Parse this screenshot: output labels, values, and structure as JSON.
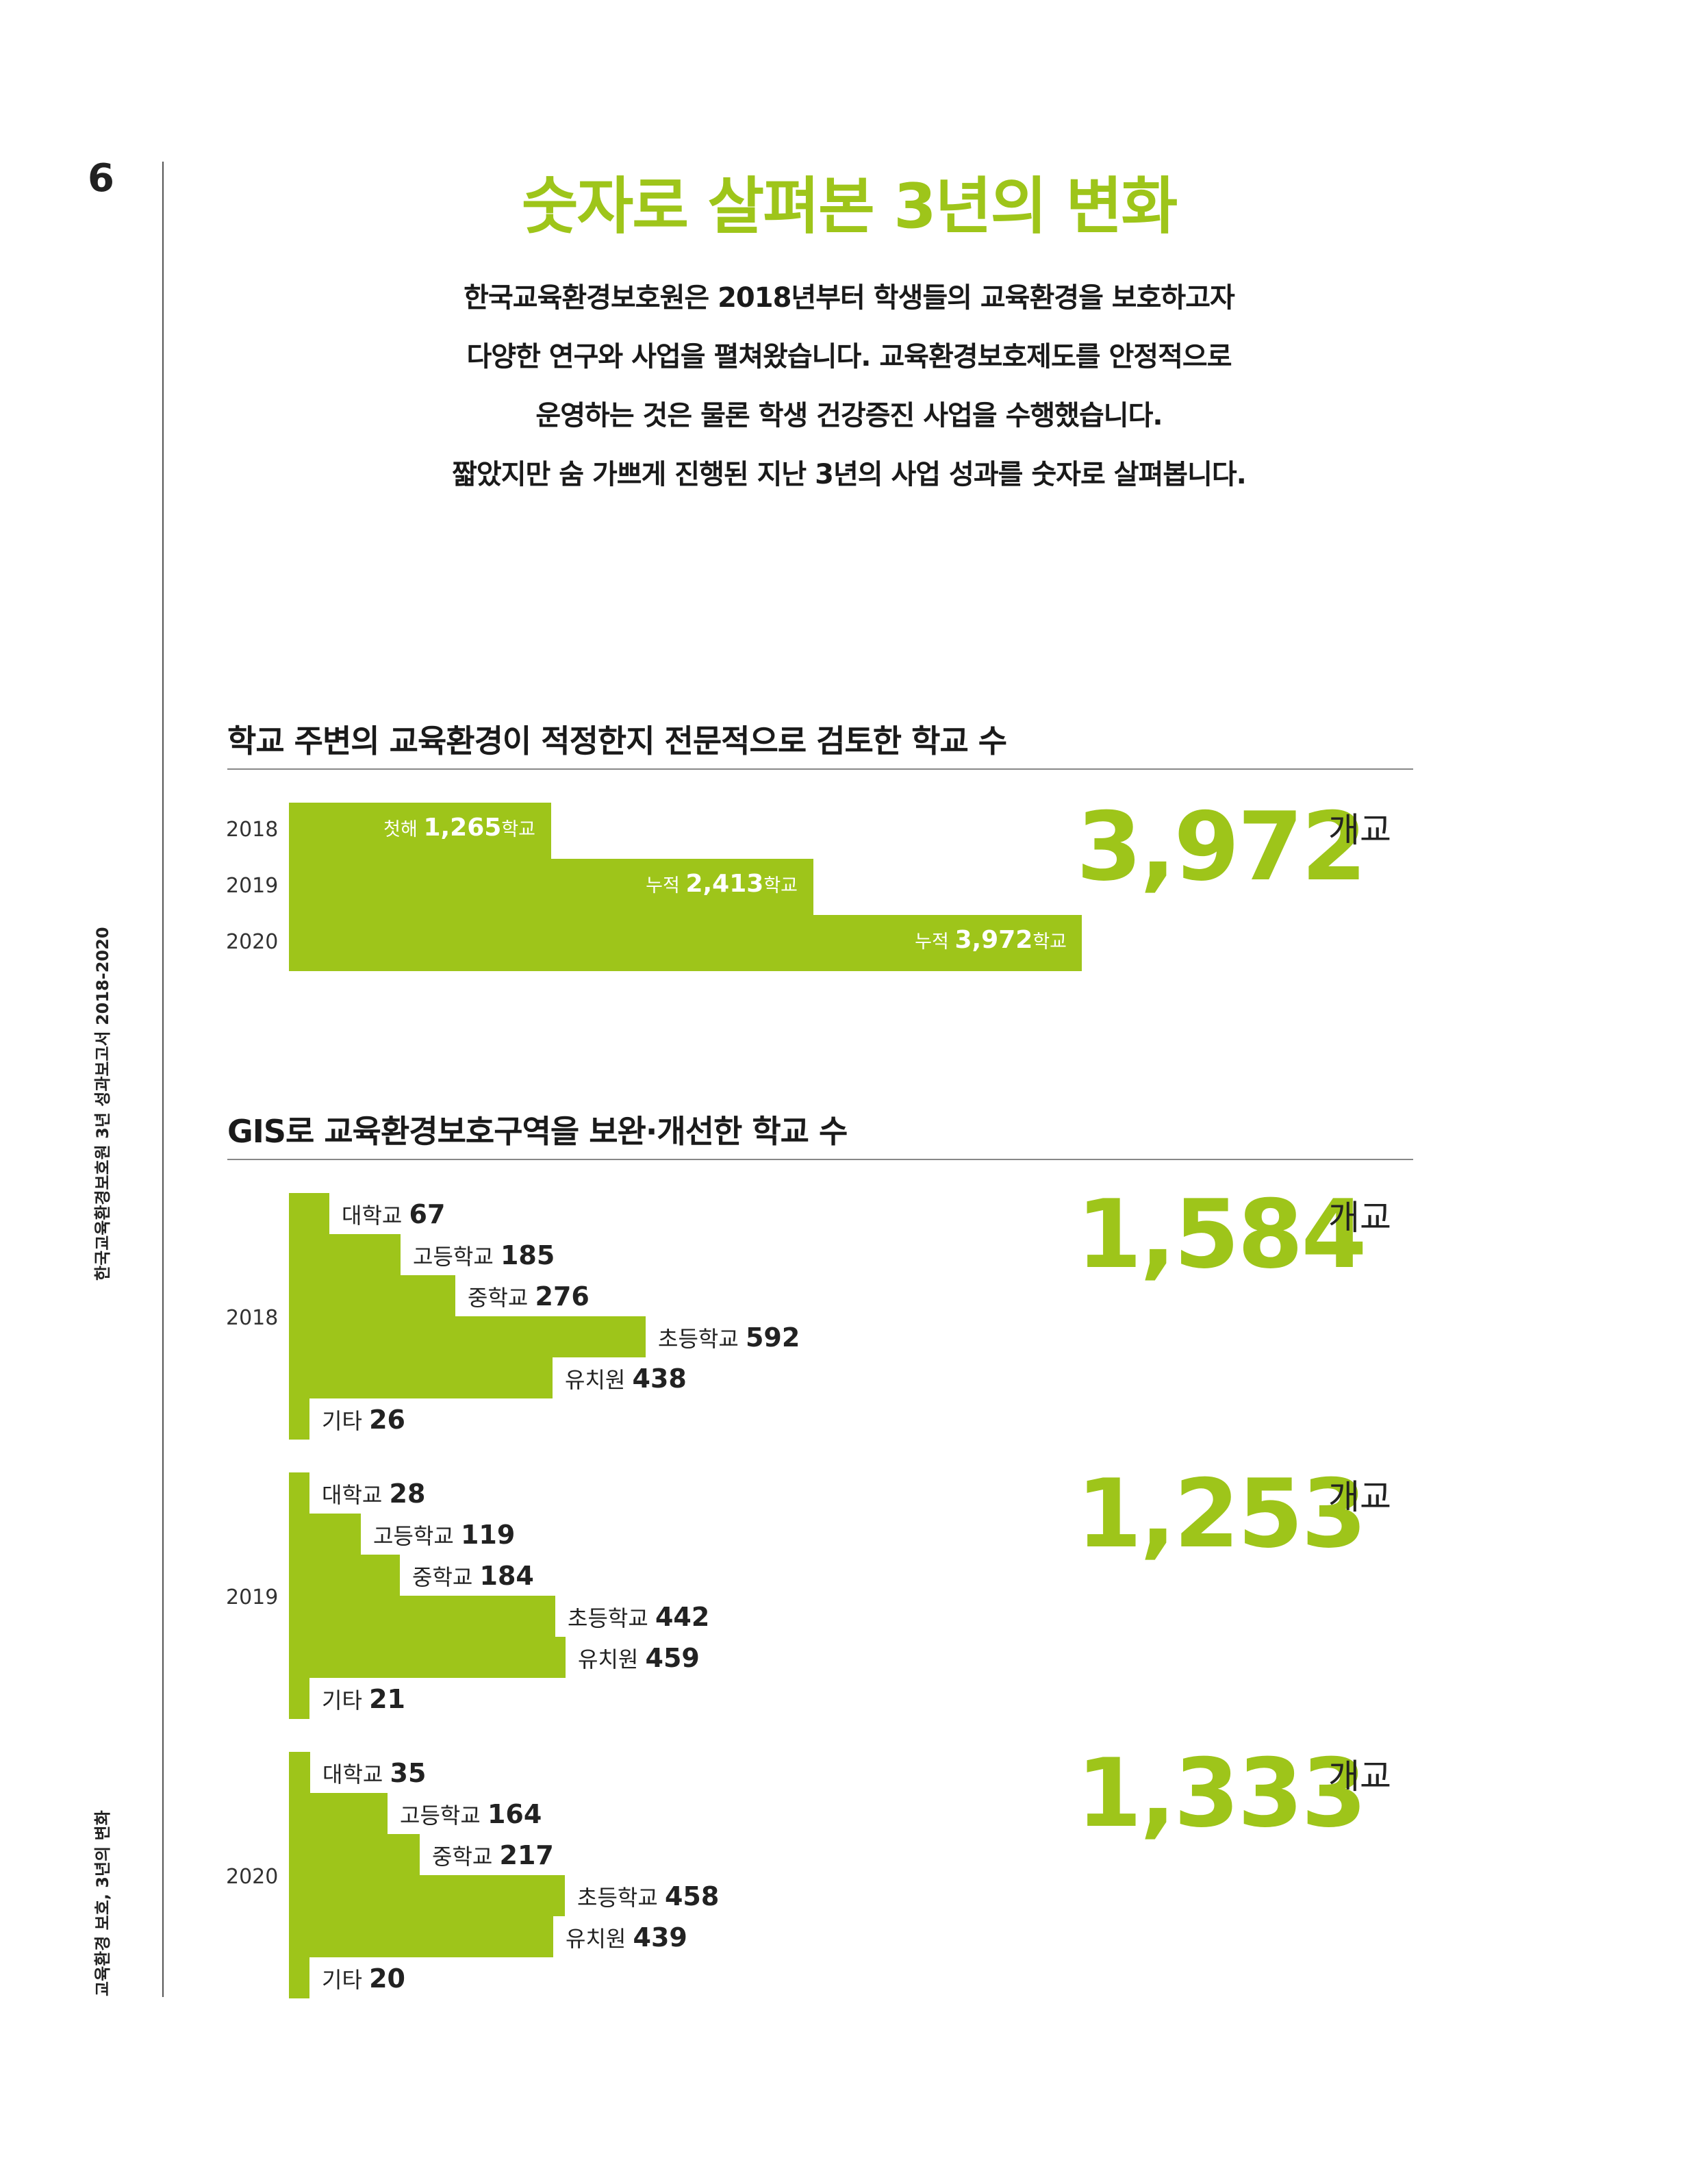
{
  "page_number": "6",
  "side": {
    "top": "한국교육환경보호원 3년 성과보고서 2018-2020",
    "bottom": "교육환경 보호, 3년의 변화"
  },
  "title": "숫자로 살펴본 3년의 변화",
  "intro_lines": [
    "한국교육환경보호원은 2018년부터 학생들의 교육환경을 보호하고자",
    "다양한 연구와 사업을 펼쳐왔습니다. 교육환경보호제도를 안정적으로",
    "운영하는 것은 물론 학생 건강증진 사업을 수행했습니다.",
    "짧았지만 숨 가쁘게 진행된 지난 3년의 사업 성과를 숫자로 살펴봅니다."
  ],
  "section1": {
    "title": "학교 주변의 교육환경이 적정한지 전문적으로 검토한 학교 수",
    "total": "3,972",
    "unit": "개교",
    "rows": [
      {
        "year": "2018",
        "prefix": "첫해",
        "value": "1,265",
        "suffix": "학교"
      },
      {
        "year": "2019",
        "prefix": "누적",
        "value": "2,413",
        "suffix": "학교"
      },
      {
        "year": "2020",
        "prefix": "누적",
        "value": "3,972",
        "suffix": "학교"
      }
    ]
  },
  "section2": {
    "title": "GIS로 교육환경보호구역을 보완·개선한 학교 수",
    "years": [
      {
        "year": "2018",
        "total": "1,584",
        "unit": "개교",
        "items": [
          {
            "label": "대학교",
            "value": "67"
          },
          {
            "label": "고등학교",
            "value": "185"
          },
          {
            "label": "중학교",
            "value": "276"
          },
          {
            "label": "초등학교",
            "value": "592"
          },
          {
            "label": "유치원",
            "value": "438"
          },
          {
            "label": "기타",
            "value": "26"
          }
        ]
      },
      {
        "year": "2019",
        "total": "1,253",
        "unit": "개교",
        "items": [
          {
            "label": "대학교",
            "value": "28"
          },
          {
            "label": "고등학교",
            "value": "119"
          },
          {
            "label": "중학교",
            "value": "184"
          },
          {
            "label": "초등학교",
            "value": "442"
          },
          {
            "label": "유치원",
            "value": "459"
          },
          {
            "label": "기타",
            "value": "21"
          }
        ]
      },
      {
        "year": "2020",
        "total": "1,333",
        "unit": "개교",
        "items": [
          {
            "label": "대학교",
            "value": "35"
          },
          {
            "label": "고등학교",
            "value": "164"
          },
          {
            "label": "중학교",
            "value": "217"
          },
          {
            "label": "초등학교",
            "value": "458"
          },
          {
            "label": "유치원",
            "value": "439"
          },
          {
            "label": "기타",
            "value": "20"
          }
        ]
      }
    ]
  },
  "colors": {
    "accent": "#9ec51a",
    "text": "#222222"
  }
}
